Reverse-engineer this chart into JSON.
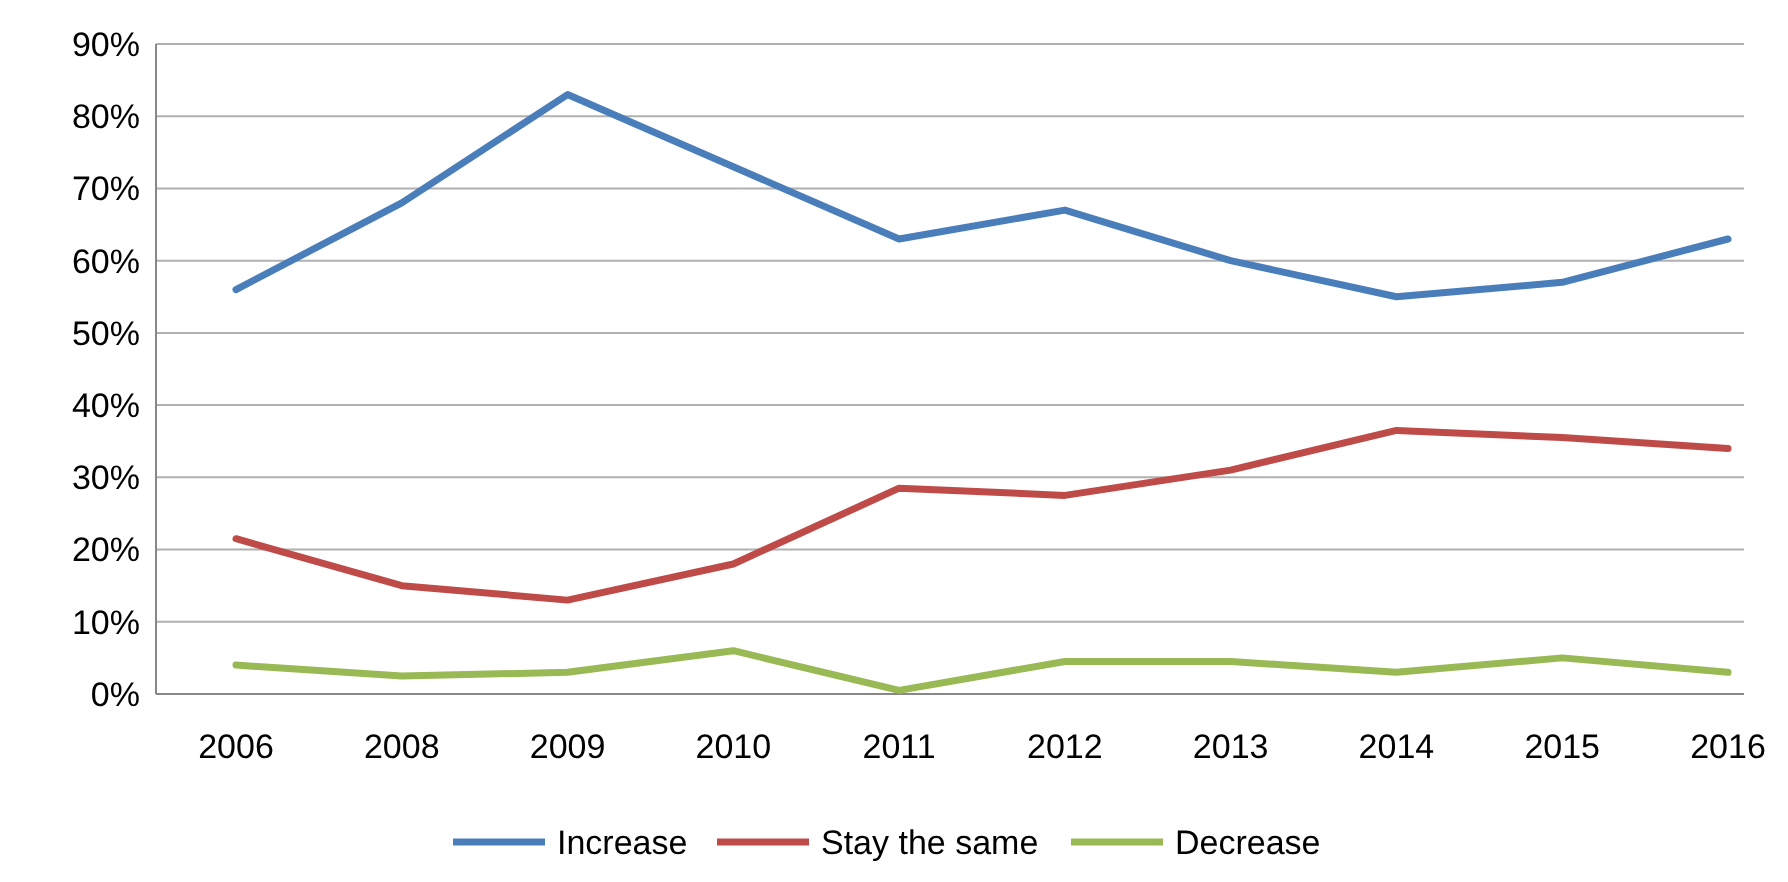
{
  "chart_data": {
    "type": "line",
    "categories": [
      "2006",
      "2008",
      "2009",
      "2010",
      "2011",
      "2012",
      "2013",
      "2014",
      "2015",
      "2016"
    ],
    "series": [
      {
        "name": "Increase",
        "color": "#4a7ebb",
        "values": [
          56,
          68,
          83,
          73,
          63,
          67,
          60,
          55,
          57,
          63
        ]
      },
      {
        "name": "Stay the same",
        "color": "#be4b48",
        "values": [
          21.5,
          15,
          13,
          18,
          28.5,
          27.5,
          31,
          36.5,
          35.5,
          34
        ]
      },
      {
        "name": "Decrease",
        "color": "#98b954",
        "values": [
          4,
          2.5,
          3,
          6,
          0.5,
          4.5,
          4.5,
          3,
          5,
          3
        ]
      }
    ],
    "ylim": [
      0,
      90
    ],
    "yticks": [
      {
        "value": 0,
        "label": "0%"
      },
      {
        "value": 10,
        "label": "10%"
      },
      {
        "value": 20,
        "label": "20%"
      },
      {
        "value": 30,
        "label": "30%"
      },
      {
        "value": 40,
        "label": "40%"
      },
      {
        "value": 50,
        "label": "50%"
      },
      {
        "value": 60,
        "label": "60%"
      },
      {
        "value": 70,
        "label": "70%"
      },
      {
        "value": 80,
        "label": "80%"
      },
      {
        "value": 90,
        "label": "90%"
      }
    ],
    "grid": "y",
    "legend": "bottom",
    "marker": "none",
    "line_style": "solid"
  }
}
